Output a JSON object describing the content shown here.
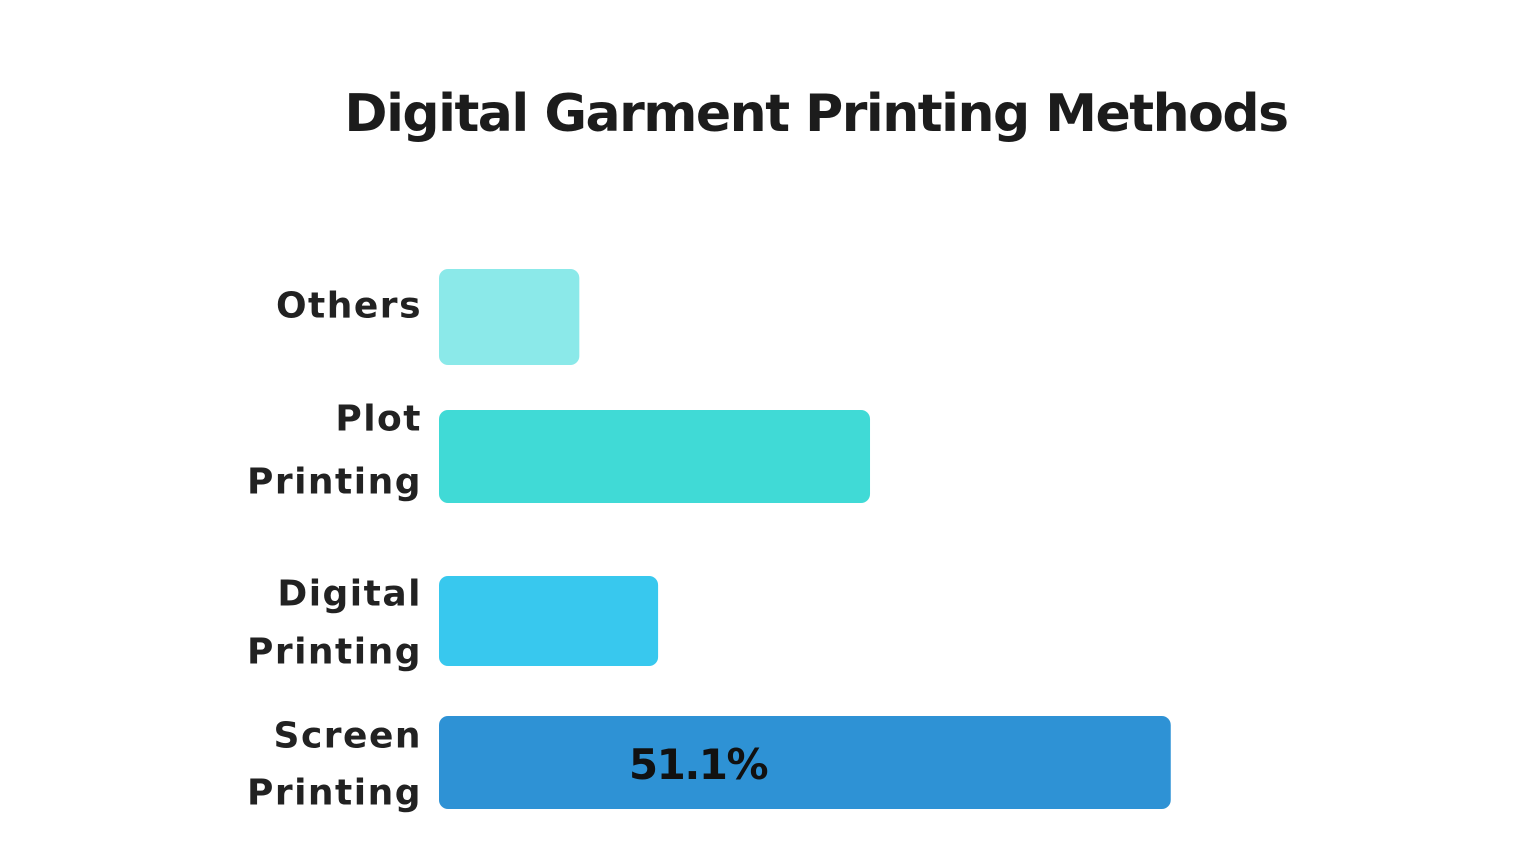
{
  "chart_data": {
    "type": "bar",
    "orientation": "horizontal",
    "title": "Digital Garment Printing Methods",
    "categories": [
      [
        "Others"
      ],
      [
        "Plot",
        "Printing"
      ],
      [
        "Digital",
        "Printing"
      ],
      [
        "Screen",
        "Printing"
      ]
    ],
    "values": [
      9.8,
      30.1,
      15.3,
      51.1
    ],
    "data_labels": [
      "",
      "",
      "",
      "51.1%"
    ],
    "colors": [
      "#8be9e9",
      "#40dad6",
      "#38c8ee",
      "#2e92d5"
    ],
    "xlim": [
      0,
      100
    ],
    "grid": false,
    "legend": "none"
  }
}
